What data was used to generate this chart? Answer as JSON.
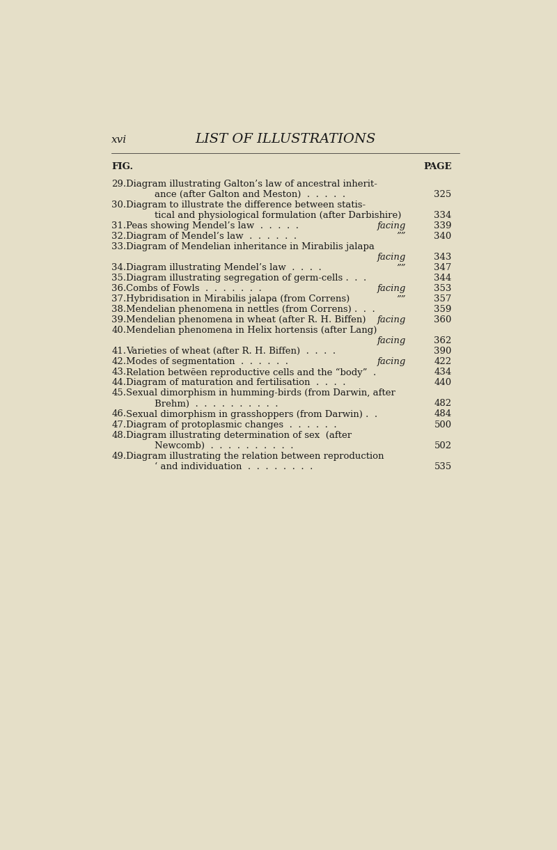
{
  "background_color": "#e5dfc8",
  "header_left": "xvi",
  "header_center": "LIST OF ILLUSTRATIONS",
  "col_fig": "FIG.",
  "col_page": "PAGE",
  "text_color": "#1a1a1a",
  "font_size_header": 11,
  "font_size_title": 14,
  "font_size_body": 9.5,
  "font_size_col_header": 9.5,
  "entries_data": [
    {
      "num": "29.",
      "lines": [
        "Diagram illustrating Galton’s law of ancestral inherit-",
        "ance (after Galton and Meston)  .  .  .  .  ."
      ],
      "facing": "",
      "page": "325",
      "page_line": 1,
      "facing_line": -1,
      "indent_line2": true
    },
    {
      "num": "30.",
      "lines": [
        "Diagram to illustrate the difference between statis-",
        "tical and physiological formulation (after Darbishire)"
      ],
      "facing": "",
      "page": "334",
      "page_line": 1,
      "facing_line": -1,
      "indent_line2": true
    },
    {
      "num": "31.",
      "lines": [
        "Peas showing Mendel’s law  .  .  .  .  ."
      ],
      "facing": "facing",
      "page": "339",
      "page_line": 0,
      "facing_line": 0,
      "indent_line2": false
    },
    {
      "num": "32.",
      "lines": [
        "Diagram of Mendel’s law  .  .  .  .  .  ."
      ],
      "facing": "””",
      "page": "340",
      "page_line": 0,
      "facing_line": 0,
      "indent_line2": false
    },
    {
      "num": "33.",
      "lines": [
        "Diagram of Mendelian inheritance in Mirabilis jalapa",
        ""
      ],
      "facing": "facing",
      "page": "343",
      "page_line": 1,
      "facing_line": 1,
      "indent_line2": false
    },
    {
      "num": "34.",
      "lines": [
        "Diagram illustrating Mendel’s law  .  .  .  ."
      ],
      "facing": "””",
      "page": "347",
      "page_line": 0,
      "facing_line": 0,
      "indent_line2": false
    },
    {
      "num": "35.",
      "lines": [
        "Diagram illustrating segregation of germ-cells .  .  ."
      ],
      "facing": "",
      "page": "344",
      "page_line": 0,
      "facing_line": -1,
      "indent_line2": false
    },
    {
      "num": "36.",
      "lines": [
        "Combs of Fowls  .  .  .  .  .  .  ."
      ],
      "facing": "facing",
      "page": "353",
      "page_line": 0,
      "facing_line": 0,
      "indent_line2": false
    },
    {
      "num": "37.",
      "lines": [
        "Hybridisation in Mirabilis jalapa (from Correns)"
      ],
      "facing": "””",
      "page": "357",
      "page_line": 0,
      "facing_line": 0,
      "indent_line2": false
    },
    {
      "num": "38.",
      "lines": [
        "Mendelian phenomena in nettles (from Correns) .  .  ."
      ],
      "facing": "",
      "page": "359",
      "page_line": 0,
      "facing_line": -1,
      "indent_line2": false
    },
    {
      "num": "39.",
      "lines": [
        "Mendelian phenomena in wheat (after R. H. Biffen)"
      ],
      "facing": "facing",
      "page": "360",
      "page_line": 0,
      "facing_line": 0,
      "indent_line2": false
    },
    {
      "num": "40.",
      "lines": [
        "Mendelian phenomena in Helix hortensis (after Lang)",
        ""
      ],
      "facing": "facing",
      "page": "362",
      "page_line": 1,
      "facing_line": 1,
      "indent_line2": false
    },
    {
      "num": "41.",
      "lines": [
        "Varieties of wheat (after R. H. Biffen)  .  .  .  ."
      ],
      "facing": "",
      "page": "390",
      "page_line": 0,
      "facing_line": -1,
      "indent_line2": false
    },
    {
      "num": "42.",
      "lines": [
        "Modes of segmentation  .  .  .  .  .  ."
      ],
      "facing": "facing",
      "page": "422",
      "page_line": 0,
      "facing_line": 0,
      "indent_line2": false
    },
    {
      "num": "43.",
      "lines": [
        "Relation betwēen reproductive cells and the “body”  ."
      ],
      "facing": "",
      "page": "434",
      "page_line": 0,
      "facing_line": -1,
      "indent_line2": false
    },
    {
      "num": "44.",
      "lines": [
        "Diagram of maturation and fertilisation  .  .  .  ."
      ],
      "facing": "",
      "page": "440",
      "page_line": 0,
      "facing_line": -1,
      "indent_line2": false
    },
    {
      "num": "45.",
      "lines": [
        "Sexual dimorphism in humming-birds (from Darwin, after",
        "Brehm)  .  .  .  .  .  .  .  .  .  ."
      ],
      "facing": "",
      "page": "482",
      "page_line": 1,
      "facing_line": -1,
      "indent_line2": true
    },
    {
      "num": "46.",
      "lines": [
        "Sexual dimorphism in grasshoppers (from Darwin) .  ."
      ],
      "facing": "",
      "page": "484",
      "page_line": 0,
      "facing_line": -1,
      "indent_line2": false
    },
    {
      "num": "47.",
      "lines": [
        "Diagram of protoplasmic changes  .  .  .  .  .  ."
      ],
      "facing": "",
      "page": "500",
      "page_line": 0,
      "facing_line": -1,
      "indent_line2": false
    },
    {
      "num": "48.",
      "lines": [
        "Diagram illustrating determination of sex  (after",
        "Newcomb)  .  .  .  .  .  .  .  .  .  ."
      ],
      "facing": "",
      "page": "502",
      "page_line": 1,
      "facing_line": -1,
      "indent_line2": true
    },
    {
      "num": "49.",
      "lines": [
        "Diagram illustrating the relation between reproduction",
        "‘ and individuation  .  .  .  .  .  .  .  ."
      ],
      "facing": "",
      "page": "535",
      "page_line": 1,
      "facing_line": -1,
      "indent_line2": true
    }
  ]
}
